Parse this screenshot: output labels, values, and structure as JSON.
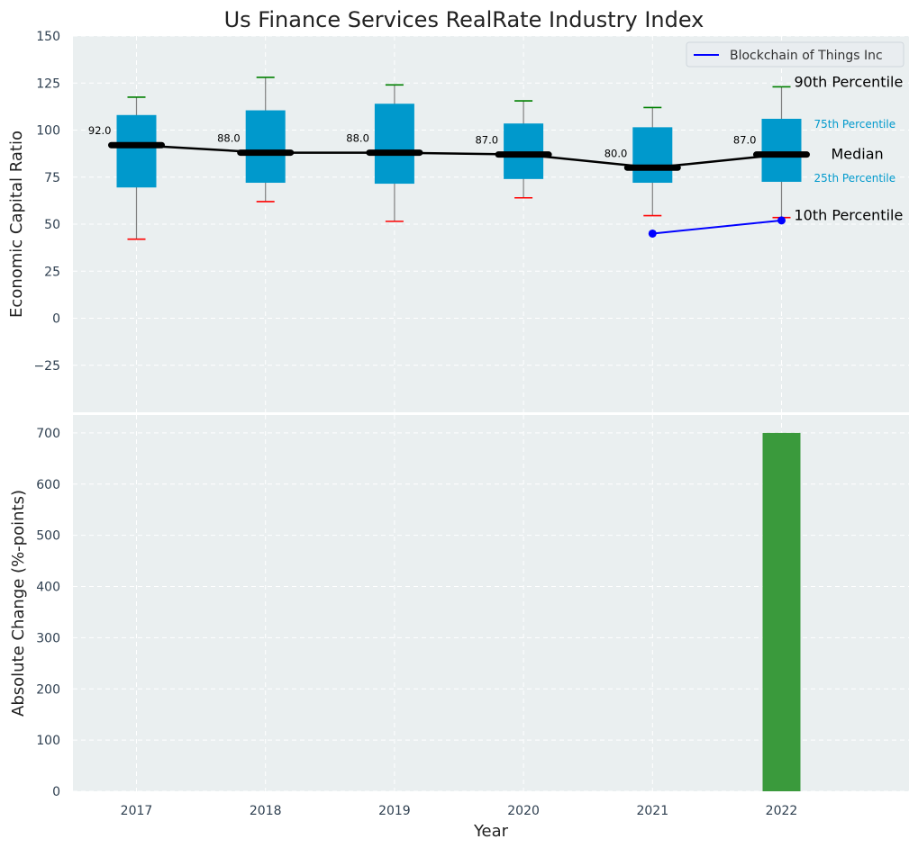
{
  "chart_data": [
    {
      "type": "box",
      "title": "Us Finance Services RealRate Industry Index",
      "ylabel": "Economic Capital Ratio",
      "xlabel": "",
      "ylim": [
        -50,
        150
      ],
      "yticks": [
        -25,
        0,
        25,
        50,
        75,
        100,
        125,
        150
      ],
      "ytick_labels": [
        "−25",
        "0",
        "25",
        "50",
        "75",
        "100",
        "125",
        "150"
      ],
      "grid": true,
      "categories": [
        "2017",
        "2018",
        "2019",
        "2020",
        "2021",
        "2022"
      ],
      "boxes": [
        {
          "year": "2017",
          "p10": 42,
          "p25": 69.5,
          "median": 92,
          "p75": 108,
          "p90": 117.5
        },
        {
          "year": "2018",
          "p10": 62,
          "p25": 72,
          "median": 88,
          "p75": 110.5,
          "p90": 128
        },
        {
          "year": "2019",
          "p10": 51.5,
          "p25": 71.5,
          "median": 88,
          "p75": 114,
          "p90": 124
        },
        {
          "year": "2020",
          "p10": 64,
          "p25": 74,
          "median": 87,
          "p75": 103.5,
          "p90": 115.5
        },
        {
          "year": "2021",
          "p10": 54.5,
          "p25": 72,
          "median": 80,
          "p75": 101.5,
          "p90": 112
        },
        {
          "year": "2022",
          "p10": 53.5,
          "p25": 72.5,
          "median": 87,
          "p75": 106,
          "p90": 123
        }
      ],
      "median_labels": [
        "92.0",
        "88.0",
        "88.0",
        "87.0",
        "80.0",
        "87.0"
      ],
      "series": [
        {
          "name": "Blockchain of Things Inc",
          "x": [
            "2021",
            "2022"
          ],
          "values": [
            45,
            52
          ],
          "color": "#0000ff"
        }
      ],
      "legend": "top-right",
      "annotations": {
        "p90": "90th Percentile",
        "p75": "75th Percentile",
        "median": "Median",
        "p25": "25th Percentile",
        "p10": "10th Percentile"
      },
      "colors": {
        "box": "#0099cc",
        "median_line": "#000000",
        "whisker": "#808080",
        "cap_top": "#008000",
        "cap_bottom": "#ff0000",
        "background": "#eaeff0"
      }
    },
    {
      "type": "bar",
      "ylabel": "Absolute Change (%-points)",
      "xlabel": "Year",
      "ylim": [
        0,
        735
      ],
      "yticks": [
        0,
        100,
        200,
        300,
        400,
        500,
        600,
        700
      ],
      "grid": true,
      "categories": [
        "2017",
        "2018",
        "2019",
        "2020",
        "2021",
        "2022"
      ],
      "values": [
        0,
        0,
        0,
        0,
        0,
        700
      ],
      "color": "#3a9a3c"
    }
  ]
}
